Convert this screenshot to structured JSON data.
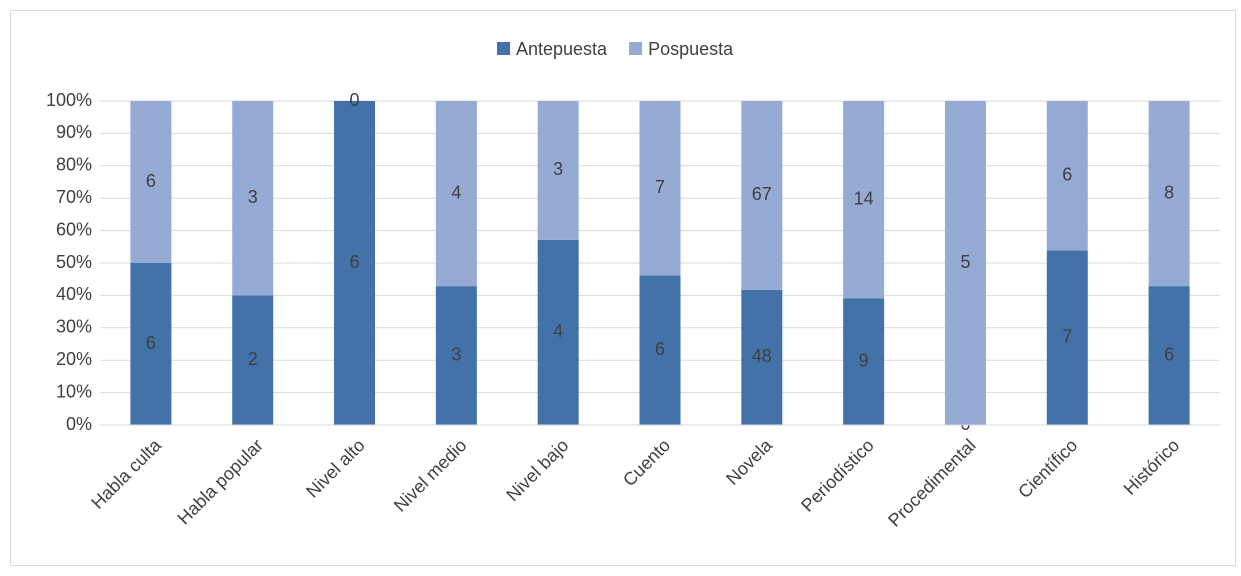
{
  "chart_data": {
    "type": "bar",
    "stacked": "percent",
    "categories": [
      "Habla culta",
      "Habla popular",
      "Nivel alto",
      "Nivel medio",
      "Nivel bajo",
      "Cuento",
      "Novela",
      "Periodístico",
      "Procedimental",
      "Científico",
      "Histórico"
    ],
    "series": [
      {
        "name": "Antepuesta",
        "color": "#4372a8",
        "values": [
          6,
          2,
          6,
          3,
          4,
          6,
          48,
          9,
          0,
          7,
          6
        ]
      },
      {
        "name": "Pospuesta",
        "color": "#95abd4",
        "values": [
          6,
          3,
          0,
          4,
          3,
          7,
          67,
          14,
          5,
          6,
          8
        ]
      }
    ],
    "ylim": [
      0,
      100
    ],
    "yticks": [
      {
        "value": 0,
        "label": "0%"
      },
      {
        "value": 10,
        "label": "10%"
      },
      {
        "value": 20,
        "label": "20%"
      },
      {
        "value": 30,
        "label": "30%"
      },
      {
        "value": 40,
        "label": "40%"
      },
      {
        "value": 50,
        "label": "50%"
      },
      {
        "value": 60,
        "label": "60%"
      },
      {
        "value": 70,
        "label": "70%"
      },
      {
        "value": 80,
        "label": "80%"
      },
      {
        "value": 90,
        "label": "90%"
      },
      {
        "value": 100,
        "label": "100%"
      }
    ],
    "grid": true,
    "legend": "top"
  }
}
